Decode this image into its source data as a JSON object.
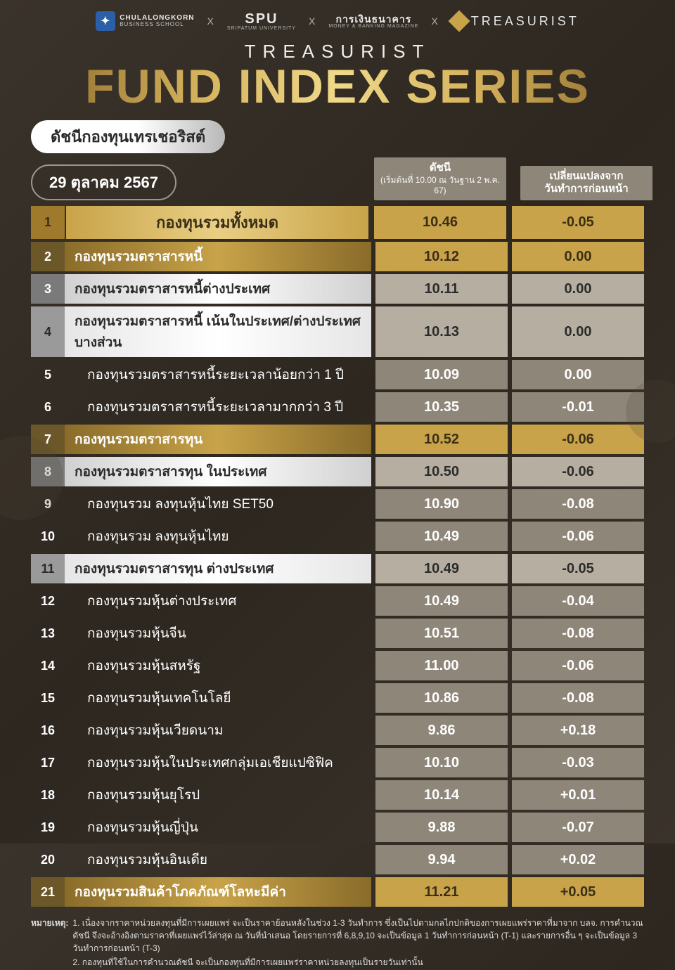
{
  "partners": {
    "p1_l1": "CHULALONGKORN",
    "p1_l2": "BUSINESS SCHOOL",
    "p2": "SPU",
    "p2_sub": "SRIPATUM UNIVERSITY",
    "p3": "การเงินธนาคาร",
    "p3_sub": "MONEY & BANKING MAGAZINE",
    "p4": "TREASURIST",
    "x": "X"
  },
  "title": {
    "sub": "TREASURIST",
    "main": "FUND INDEX SERIES"
  },
  "subtitle_pill": "ดัชนีกองทุนเทรเชอริสต์",
  "date_pill": "29 ตุลาคม 2567",
  "col_index_l1": "ดัชนี",
  "col_index_l2": "(เริ่มต้นที่ 10.00 ณ วันฐาน 2 พ.ค. 67)",
  "col_change_l1": "เปลี่ยนแปลงจาก",
  "col_change_l2": "วันทำการก่อนหน้า",
  "rows": [
    {
      "n": "1",
      "name": "กองทุนรวมทั้งหมด",
      "idx": "10.46",
      "chg": "-0.05",
      "style": "r-gold",
      "center": true
    },
    {
      "n": "2",
      "name": "กองทุนรวมตราสารหนี้",
      "idx": "10.12",
      "chg": "0.00",
      "style": "r-goldsub"
    },
    {
      "n": "3",
      "name": "กองทุนรวมตราสารหนี้ต่างประเทศ",
      "idx": "10.11",
      "chg": "0.00",
      "style": "r-silver"
    },
    {
      "n": "4",
      "name": "กองทุนรวมตราสารหนี้ เน้นในประเทศ/ต่างประเทศบางส่วน",
      "idx": "10.13",
      "chg": "0.00",
      "style": "r-silver2"
    },
    {
      "n": "5",
      "name": "กองทุนรวมตราสารหนี้ระยะเวลาน้อยกว่า 1 ปี",
      "idx": "10.09",
      "chg": "0.00",
      "style": "r-plain",
      "indent": true
    },
    {
      "n": "6",
      "name": "กองทุนรวมตราสารหนี้ระยะเวลามากกว่า 3 ปี",
      "idx": "10.35",
      "chg": "-0.01",
      "style": "r-plain",
      "indent": true
    },
    {
      "n": "7",
      "name": "กองทุนรวมตราสารทุน",
      "idx": "10.52",
      "chg": "-0.06",
      "style": "r-goldsub"
    },
    {
      "n": "8",
      "name": "กองทุนรวมตราสารทุน ในประเทศ",
      "idx": "10.50",
      "chg": "-0.06",
      "style": "r-silver"
    },
    {
      "n": "9",
      "name": "กองทุนรวม ลงทุนหุ้นไทย SET50",
      "idx": "10.90",
      "chg": "-0.08",
      "style": "r-plain",
      "indent": true
    },
    {
      "n": "10",
      "name": "กองทุนรวม ลงทุนหุ้นไทย",
      "idx": "10.49",
      "chg": "-0.06",
      "style": "r-plain",
      "indent": true
    },
    {
      "n": "11",
      "name": "กองทุนรวมตราสารทุน ต่างประเทศ",
      "idx": "10.49",
      "chg": "-0.05",
      "style": "r-silver2"
    },
    {
      "n": "12",
      "name": "กองทุนรวมหุ้นต่างประเทศ",
      "idx": "10.49",
      "chg": "-0.04",
      "style": "r-plain",
      "indent": true
    },
    {
      "n": "13",
      "name": "กองทุนรวมหุ้นจีน",
      "idx": "10.51",
      "chg": "-0.08",
      "style": "r-plain",
      "indent": true
    },
    {
      "n": "14",
      "name": "กองทุนรวมหุ้นสหรัฐ",
      "idx": "11.00",
      "chg": "-0.06",
      "style": "r-plain",
      "indent": true
    },
    {
      "n": "15",
      "name": "กองทุนรวมหุ้นเทคโนโลยี",
      "idx": "10.86",
      "chg": "-0.08",
      "style": "r-plain",
      "indent": true
    },
    {
      "n": "16",
      "name": "กองทุนรวมหุ้นเวียดนาม",
      "idx": "9.86",
      "chg": "+0.18",
      "style": "r-plain",
      "indent": true
    },
    {
      "n": "17",
      "name": "กองทุนรวมหุ้นในประเทศกลุ่มเอเชียแปซิฟิค",
      "idx": "10.10",
      "chg": "-0.03",
      "style": "r-plain",
      "indent": true
    },
    {
      "n": "18",
      "name": "กองทุนรวมหุ้นยุโรป",
      "idx": "10.14",
      "chg": "+0.01",
      "style": "r-plain",
      "indent": true
    },
    {
      "n": "19",
      "name": "กองทุนรวมหุ้นญี่ปุ่น",
      "idx": "9.88",
      "chg": "-0.07",
      "style": "r-plain",
      "indent": true
    },
    {
      "n": "20",
      "name": "กองทุนรวมหุ้นอินเดีย",
      "idx": "9.94",
      "chg": "+0.02",
      "style": "r-plain",
      "indent": true
    },
    {
      "n": "21",
      "name": "กองทุนรวมสินค้าโภคภัณฑ์โลหะมีค่า",
      "idx": "11.21",
      "chg": "+0.05",
      "style": "r-goldsub"
    }
  ],
  "footnote_label": "หมายเหตุ:",
  "footnotes": [
    "1. เนื่องจากราคาหน่วยลงทุนที่มีการเผยแพร่ จะเป็นราคาย้อนหลังในช่วง 1-3 วันทำการ ซึ่งเป็นไปตามกลไกปกติของการเผยแพร่ราคาที่มาจาก บลจ. การคำนวณดัชนี จึงจะอ้างอิงตามราคาที่เผยแพร่ไว้ล่าสุด ณ วันที่นำเสนอ โดยรายการที่ 6,8,9,10 จะเป็นข้อมูล 1 วันทำการก่อนหน้า (T-1) และรายการอื่น ๆ จะเป็นข้อมูล 3 วันทำการก่อนหน้า (T-3)",
    "2. กองทุนที่ใช้ในการคำนวณดัชนี จะเป็นกองทุนที่มีการเผยแพร่ราคาหน่วยลงทุนเป็นรายวันเท่านั้น"
  ],
  "colors": {
    "gold_dark": "#a07a2c",
    "gold": "#c8a349",
    "gold_light": "#e8cf84",
    "silver": "#d0d0d0",
    "taupe": "#8e8678",
    "taupe_light": "#b6afa1",
    "bg": "#2d2720"
  }
}
